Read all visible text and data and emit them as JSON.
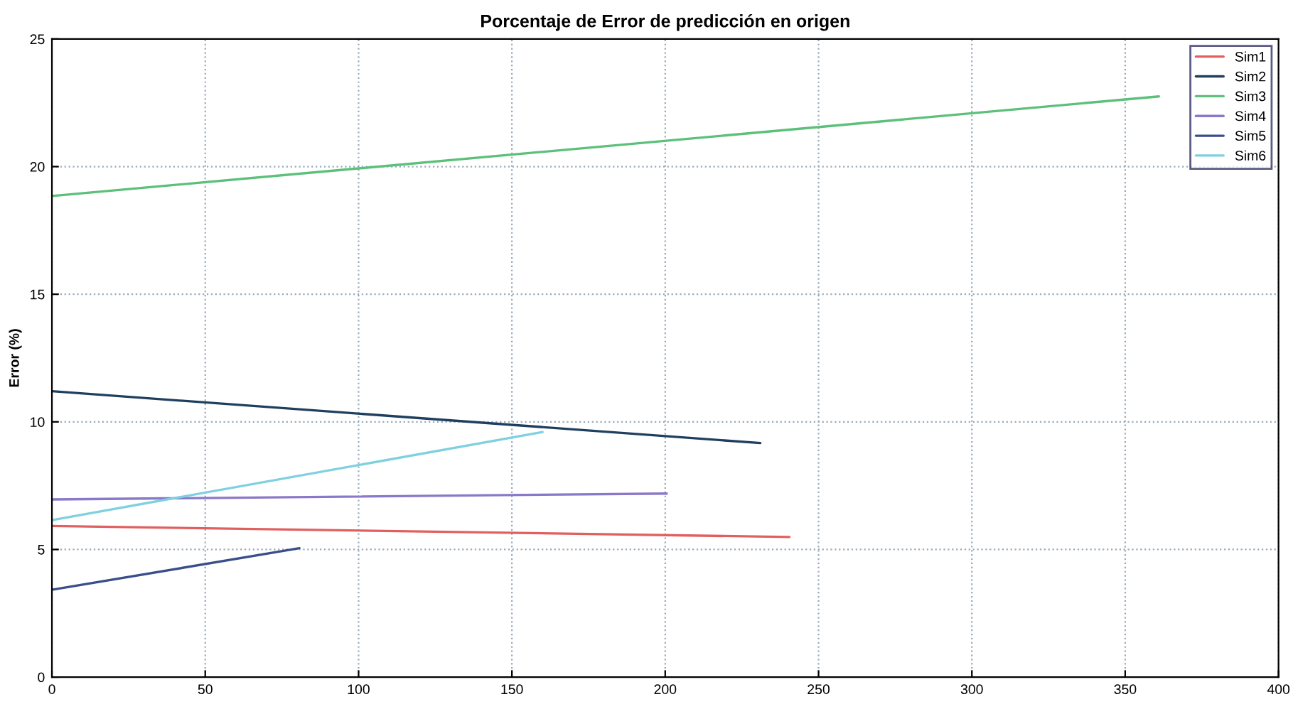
{
  "chart_data": {
    "type": "line",
    "title": "Porcentaje de Error de predicción en origen",
    "ylabel": "Error (%)",
    "series": [
      {
        "name": "Sim1",
        "color": "#e06060",
        "x": [
          0,
          240.5
        ],
        "values": [
          5.92,
          5.49
        ]
      },
      {
        "name": "Sim2",
        "color": "#1f3f5f",
        "x": [
          0,
          231
        ],
        "values": [
          11.2,
          9.17
        ]
      },
      {
        "name": "Sim3",
        "color": "#5cc07a",
        "x": [
          0,
          361
        ],
        "values": [
          18.85,
          22.75
        ]
      },
      {
        "name": "Sim4",
        "color": "#8a78c8",
        "x": [
          0,
          200.5
        ],
        "values": [
          6.96,
          7.19
        ]
      },
      {
        "name": "Sim5",
        "color": "#3a4f8a",
        "x": [
          0,
          80.7
        ],
        "values": [
          3.42,
          5.05
        ]
      },
      {
        "name": "Sim6",
        "color": "#7fd0e0",
        "x": [
          0,
          160
        ],
        "values": [
          6.15,
          9.6
        ]
      }
    ],
    "xlim": [
      0,
      400
    ],
    "xticks": [
      0,
      50,
      100,
      150,
      200,
      250,
      300,
      350,
      400
    ],
    "ylim": [
      0,
      25
    ],
    "yticks": [
      0,
      5,
      10,
      15,
      20,
      25
    ],
    "grid": true,
    "legend": "top right",
    "line_style": "solid",
    "marker": "none"
  }
}
